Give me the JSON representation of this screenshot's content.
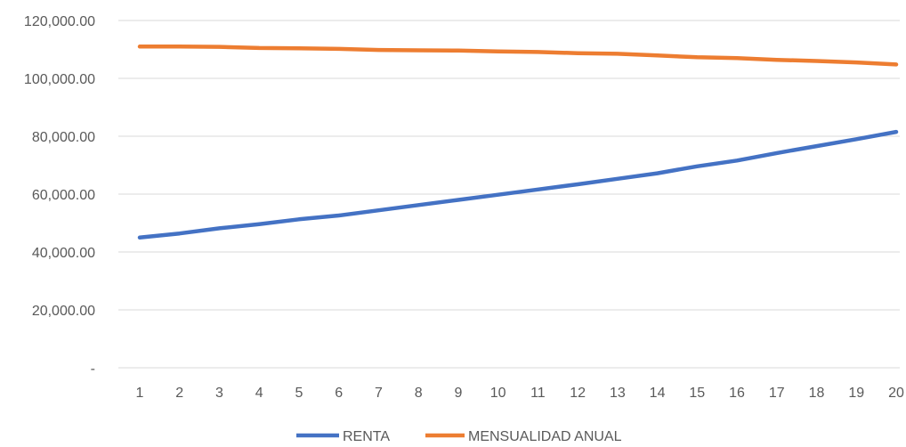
{
  "chart_data": {
    "type": "line",
    "title": "",
    "xlabel": "",
    "ylabel": "",
    "categories": [
      "1",
      "2",
      "3",
      "4",
      "5",
      "6",
      "7",
      "8",
      "9",
      "10",
      "11",
      "12",
      "13",
      "14",
      "15",
      "16",
      "17",
      "18",
      "19",
      "20"
    ],
    "ylim": [
      0,
      120000
    ],
    "y_ticks": [
      {
        "value": 0,
        "label": "-"
      },
      {
        "value": 20000,
        "label": "20,000.00"
      },
      {
        "value": 40000,
        "label": "40,000.00"
      },
      {
        "value": 60000,
        "label": "60,000.00"
      },
      {
        "value": 80000,
        "label": "80,000.00"
      },
      {
        "value": 100000,
        "label": "100,000.00"
      },
      {
        "value": 120000,
        "label": "120,000.00"
      }
    ],
    "grid": true,
    "legend_position": "bottom",
    "series": [
      {
        "name": "RENTA",
        "color": "#4472C4",
        "values": [
          45000,
          46400,
          48200,
          49600,
          51300,
          52600,
          54400,
          56200,
          58000,
          59800,
          61600,
          63400,
          65300,
          67200,
          69600,
          71600,
          74200,
          76600,
          79000,
          81500
        ]
      },
      {
        "name": "MENSUALIDAD ANUAL",
        "color": "#ED7D31",
        "values": [
          111000,
          111000,
          110900,
          110500,
          110400,
          110200,
          109800,
          109700,
          109600,
          109300,
          109100,
          108700,
          108500,
          107900,
          107300,
          107000,
          106400,
          106000,
          105500,
          104800
        ]
      }
    ]
  }
}
